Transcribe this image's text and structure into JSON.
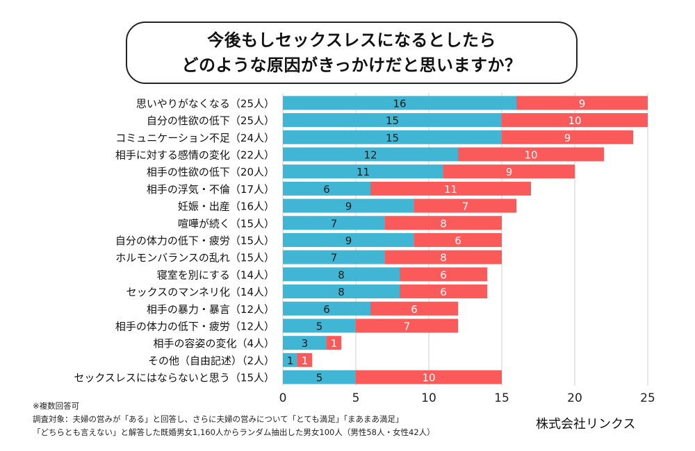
{
  "title": {
    "line1": "今後もしセックスレスになるとしたら",
    "line2": "どのような原因がきっかけだと思いますか？"
  },
  "chart_data": {
    "type": "bar",
    "orientation": "horizontal",
    "stacked": true,
    "categories": [
      "思いやりがなくなる（25人）",
      "自分の性欲の低下（25人）",
      "コミュニケーション不足（24人）",
      "相手に対する感情の変化（22人）",
      "相手の性欲の低下（20人）",
      "相手の浮気・不倫（17人）",
      "妊娠・出産（16人）",
      "喧嘩が続く（15人）",
      "自分の体力の低下・疲労（15人）",
      "ホルモンバランスの乱れ（15人）",
      "寝室を別にする（14人）",
      "セックスのマンネリ化（14人）",
      "相手の暴力・暴言（12人）",
      "相手の体力の低下・疲労（12人）",
      "相手の容姿の変化（4人）",
      "その他（自由記述）（2人）",
      "セックスレスにはならないと思う（15人）"
    ],
    "series": [
      {
        "color": "#41b6d4",
        "values": [
          16,
          15,
          15,
          12,
          11,
          6,
          9,
          7,
          9,
          7,
          8,
          8,
          6,
          5,
          3,
          1,
          5
        ]
      },
      {
        "color": "#fb5a5a",
        "values": [
          9,
          10,
          9,
          10,
          9,
          11,
          7,
          8,
          6,
          8,
          6,
          6,
          6,
          7,
          1,
          1,
          10
        ]
      }
    ],
    "xlim": [
      0,
      25
    ],
    "xticks": [
      0,
      5,
      10,
      15,
      20,
      25
    ],
    "grid": true
  },
  "footnotes": {
    "line1": "※複数回答可",
    "line2": "調査対象：夫婦の営みが「ある」と回答し、さらに夫婦の営みについて「とても満足」「まあまあ満足」",
    "line3": "「どちらとも言えない」と解答した既婚男女1,160人からランダム抽出した男女100人（男性58人・女性42人）"
  },
  "company": "株式会社リンクス"
}
